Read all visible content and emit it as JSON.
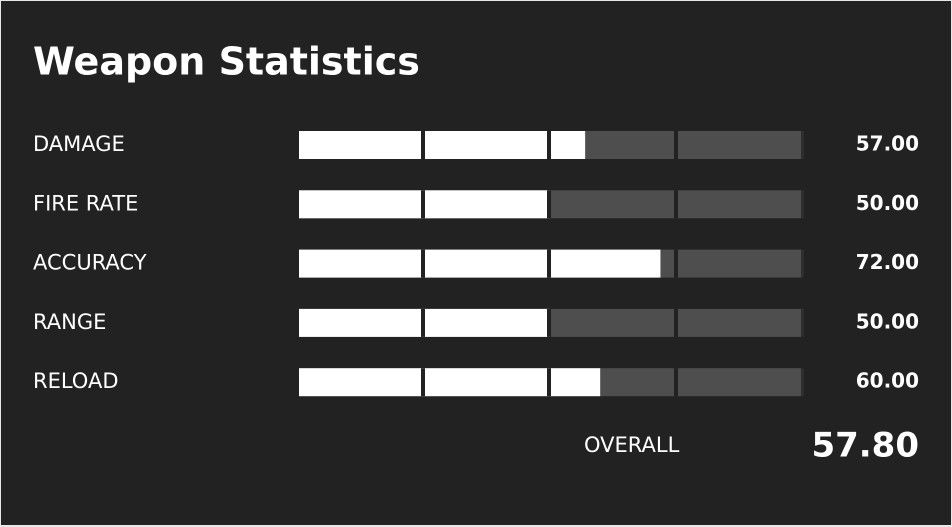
{
  "title": "Weapon Statistics",
  "xlim": [
    0,
    100
  ],
  "stats": [
    {
      "name": "DAMAGE",
      "value": 57,
      "value_label": "57.00"
    },
    {
      "name": "FIRE RATE",
      "value": 50,
      "value_label": "50.00"
    },
    {
      "name": "ACCURACY",
      "value": 72,
      "value_label": "72.00"
    },
    {
      "name": "RANGE",
      "value": 50,
      "value_label": "50.00"
    },
    {
      "name": "RELOAD",
      "value": 60,
      "value_label": "60.00"
    }
  ],
  "overall": {
    "label": "OVERALL",
    "value": 57.8,
    "value_label": "57.80"
  }
}
